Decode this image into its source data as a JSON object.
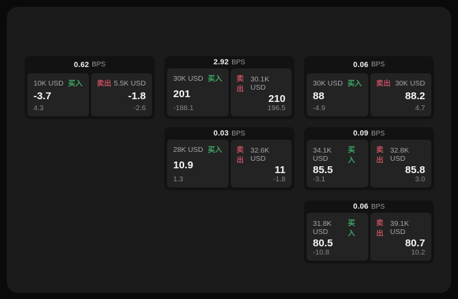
{
  "labels": {
    "buy": "买入",
    "sell": "卖出",
    "bps_unit": "BPS"
  },
  "colors": {
    "background": "#0a0a0a",
    "panel": "#1b1b1b",
    "card": "#121212",
    "pane": "#232323",
    "buy_accent": "#3ea765",
    "sell_accent": "#c04f5f"
  },
  "cards": [
    {
      "bps": "0.62",
      "buy": {
        "amount": "10K USD",
        "value": "-3.7",
        "delta": "4.3"
      },
      "sell": {
        "amount": "5.5K USD",
        "value": "-1.8",
        "delta": "-2.6"
      }
    },
    {
      "bps": "2.92",
      "buy": {
        "amount": "30K USD",
        "value": "201",
        "delta": "-188.1"
      },
      "sell": {
        "amount": "30.1K USD",
        "value": "210",
        "delta": "196.5"
      }
    },
    {
      "bps": "0.06",
      "buy": {
        "amount": "30K USD",
        "value": "88",
        "delta": "-4.9"
      },
      "sell": {
        "amount": "30K USD",
        "value": "88.2",
        "delta": "4.7"
      }
    },
    {
      "bps": "0.03",
      "buy": {
        "amount": "28K USD",
        "value": "10.9",
        "delta": "1.3"
      },
      "sell": {
        "amount": "32.6K USD",
        "value": "11",
        "delta": "-1.8"
      }
    },
    {
      "bps": "0.09",
      "buy": {
        "amount": "34.1K USD",
        "value": "85.5",
        "delta": "-3.1"
      },
      "sell": {
        "amount": "32.8K USD",
        "value": "85.8",
        "delta": "3.0"
      }
    },
    {
      "bps": "0.06",
      "buy": {
        "amount": "31.8K USD",
        "value": "80.5",
        "delta": "-10.8"
      },
      "sell": {
        "amount": "39.1K USD",
        "value": "80.7",
        "delta": "10.2"
      }
    }
  ]
}
